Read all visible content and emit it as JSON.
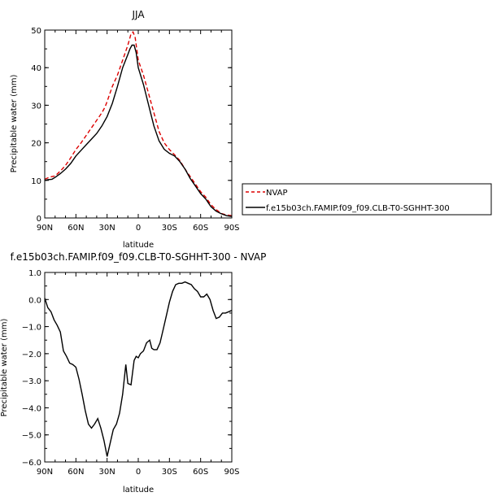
{
  "chart_data": [
    {
      "type": "line",
      "title": "JJA",
      "xlabel": "latitude",
      "ylabel": "Precipitable water (mm)",
      "xlim": [
        90,
        -90
      ],
      "ylim": [
        0,
        50
      ],
      "xticks": [
        90,
        60,
        30,
        0,
        -30,
        -60,
        -90
      ],
      "xtick_labels": [
        "90N",
        "60N",
        "30N",
        "0",
        "30S",
        "60S",
        "90S"
      ],
      "yticks": [
        0,
        10,
        20,
        30,
        40,
        50
      ],
      "ytick_labels": [
        "0",
        "10",
        "20",
        "30",
        "40",
        "50"
      ],
      "legend_position": "right",
      "series": [
        {
          "name": "NVAP",
          "color": "#dd0000",
          "dash": "dashed",
          "points": [
            [
              90,
              10.3
            ],
            [
              85,
              10.9
            ],
            [
              80,
              11.2
            ],
            [
              75,
              12.5
            ],
            [
              70,
              14
            ],
            [
              65,
              16
            ],
            [
              60,
              18.2
            ],
            [
              55,
              20
            ],
            [
              50,
              22
            ],
            [
              45,
              24
            ],
            [
              40,
              26
            ],
            [
              35,
              28
            ],
            [
              32,
              29.5
            ],
            [
              30,
              31
            ],
            [
              25,
              35
            ],
            [
              20,
              38
            ],
            [
              15,
              42
            ],
            [
              10,
              46
            ],
            [
              7,
              49
            ],
            [
              5,
              49.5
            ],
            [
              3,
              48
            ],
            [
              0,
              42
            ],
            [
              -5,
              38
            ],
            [
              -10,
              33
            ],
            [
              -15,
              28
            ],
            [
              -20,
              23
            ],
            [
              -25,
              20
            ],
            [
              -30,
              18.2
            ],
            [
              -35,
              16.8
            ],
            [
              -40,
              15.3
            ],
            [
              -45,
              13
            ],
            [
              -50,
              11
            ],
            [
              -55,
              9
            ],
            [
              -60,
              7
            ],
            [
              -65,
              5.5
            ],
            [
              -70,
              3.5
            ],
            [
              -75,
              2.2
            ],
            [
              -80,
              1.2
            ],
            [
              -85,
              0.8
            ],
            [
              -90,
              0.6
            ]
          ]
        },
        {
          "name": "f.e15b03ch.FAMIP.f09_f09.CLB-T0-SGHHT-300",
          "color": "#000000",
          "dash": "solid",
          "points": [
            [
              90,
              10
            ],
            [
              87,
              10.2
            ],
            [
              83,
              10.3
            ],
            [
              80,
              10.8
            ],
            [
              75,
              11.8
            ],
            [
              70,
              13
            ],
            [
              65,
              14.5
            ],
            [
              60,
              16.5
            ],
            [
              55,
              18
            ],
            [
              50,
              19.5
            ],
            [
              45,
              21
            ],
            [
              40,
              22.5
            ],
            [
              35,
              24.5
            ],
            [
              30,
              27
            ],
            [
              25,
              30.5
            ],
            [
              20,
              35
            ],
            [
              15,
              40
            ],
            [
              10,
              43.5
            ],
            [
              8,
              45
            ],
            [
              6,
              46
            ],
            [
              4,
              46
            ],
            [
              2,
              44
            ],
            [
              0,
              40
            ],
            [
              -5,
              35.5
            ],
            [
              -10,
              30
            ],
            [
              -15,
              24.5
            ],
            [
              -20,
              20.5
            ],
            [
              -25,
              18.3
            ],
            [
              -30,
              17.2
            ],
            [
              -35,
              16.5
            ],
            [
              -40,
              15
            ],
            [
              -45,
              13
            ],
            [
              -50,
              10.5
            ],
            [
              -55,
              8.5
            ],
            [
              -60,
              6.5
            ],
            [
              -65,
              5
            ],
            [
              -70,
              3
            ],
            [
              -75,
              1.8
            ],
            [
              -80,
              1.1
            ],
            [
              -85,
              0.6
            ],
            [
              -90,
              0.4
            ]
          ]
        }
      ]
    },
    {
      "type": "line",
      "title": "f.e15b03ch.FAMIP.f09_f09.CLB-T0-SGHHT-300 - NVAP",
      "xlabel": "latitude",
      "ylabel": "Precipitable water (mm)",
      "xlim": [
        90,
        -90
      ],
      "ylim": [
        -6,
        1
      ],
      "xticks": [
        90,
        60,
        30,
        0,
        -30,
        -60,
        -90
      ],
      "xtick_labels": [
        "90N",
        "60N",
        "30N",
        "0",
        "30S",
        "60S",
        "90S"
      ],
      "yticks": [
        -6,
        -5,
        -4,
        -3,
        -2,
        -1,
        0,
        1
      ],
      "ytick_labels": [
        "−6.0",
        "−5.0",
        "−4.0",
        "−3.0",
        "−2.0",
        "−1.0",
        "0.0",
        "1.0"
      ],
      "series": [
        {
          "color": "#000000",
          "dash": "solid",
          "points": [
            [
              90,
              0.05
            ],
            [
              87,
              -0.3
            ],
            [
              84,
              -0.45
            ],
            [
              81,
              -0.75
            ],
            [
              78,
              -0.95
            ],
            [
              75,
              -1.2
            ],
            [
              72,
              -1.9
            ],
            [
              69,
              -2.1
            ],
            [
              66,
              -2.35
            ],
            [
              63,
              -2.4
            ],
            [
              60,
              -2.5
            ],
            [
              57,
              -2.95
            ],
            [
              54,
              -3.5
            ],
            [
              51,
              -4.1
            ],
            [
              48,
              -4.6
            ],
            [
              45,
              -4.75
            ],
            [
              42,
              -4.6
            ],
            [
              39,
              -4.4
            ],
            [
              36,
              -4.75
            ],
            [
              33,
              -5.2
            ],
            [
              30,
              -5.8
            ],
            [
              27,
              -5.3
            ],
            [
              24,
              -4.8
            ],
            [
              21,
              -4.6
            ],
            [
              18,
              -4.2
            ],
            [
              15,
              -3.5
            ],
            [
              12,
              -2.4
            ],
            [
              10,
              -3.1
            ],
            [
              7,
              -3.15
            ],
            [
              4,
              -2.25
            ],
            [
              2,
              -2.1
            ],
            [
              0,
              -2.15
            ],
            [
              -2,
              -2.0
            ],
            [
              -5,
              -1.9
            ],
            [
              -8,
              -1.6
            ],
            [
              -11,
              -1.5
            ],
            [
              -13,
              -1.8
            ],
            [
              -15,
              -1.85
            ],
            [
              -18,
              -1.85
            ],
            [
              -21,
              -1.6
            ],
            [
              -24,
              -1.1
            ],
            [
              -27,
              -0.6
            ],
            [
              -30,
              -0.1
            ],
            [
              -33,
              0.3
            ],
            [
              -36,
              0.55
            ],
            [
              -39,
              0.6
            ],
            [
              -42,
              0.6
            ],
            [
              -45,
              0.65
            ],
            [
              -48,
              0.6
            ],
            [
              -51,
              0.55
            ],
            [
              -54,
              0.4
            ],
            [
              -57,
              0.3
            ],
            [
              -60,
              0.1
            ],
            [
              -63,
              0.1
            ],
            [
              -66,
              0.2
            ],
            [
              -69,
              0.0
            ],
            [
              -72,
              -0.4
            ],
            [
              -75,
              -0.7
            ],
            [
              -78,
              -0.65
            ],
            [
              -81,
              -0.5
            ],
            [
              -84,
              -0.5
            ],
            [
              -87,
              -0.45
            ],
            [
              -90,
              -0.4
            ]
          ]
        }
      ]
    }
  ]
}
